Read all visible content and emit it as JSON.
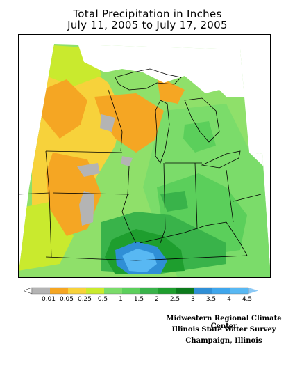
{
  "title": {
    "line1": "Total Precipitation in Inches",
    "line2": "July 11, 2005 to July 17, 2005"
  },
  "legend": {
    "bins": [
      {
        "label": "0.01",
        "color": "#b4b4b4"
      },
      {
        "label": "0.05",
        "color": "#f5a623"
      },
      {
        "label": "0.25",
        "color": "#f7d23b"
      },
      {
        "label": "0.5",
        "color": "#c9ea2e"
      },
      {
        "label": "1",
        "color": "#7bdc6a"
      },
      {
        "label": "1.5",
        "color": "#5bcf5b"
      },
      {
        "label": "2",
        "color": "#39b34a"
      },
      {
        "label": "2.5",
        "color": "#1e9e2e"
      },
      {
        "label": "3",
        "color": "#0c7a1c"
      },
      {
        "label": "3.5",
        "color": "#2f8fd6"
      },
      {
        "label": "4",
        "color": "#3fa6ec"
      },
      {
        "label": "4.5",
        "color": "#58b8f3"
      }
    ],
    "max_arrow_color": "#8cc9f5"
  },
  "credits": {
    "line1": "Midwestern Regional Climate Center",
    "line2": "Illinois State Water Survey",
    "line3": "Champaign, Illinois"
  },
  "colors": {
    "no_data": "#ffffff",
    "light_green": "#7bdc6a",
    "medium_green": "#5bcf5b",
    "green": "#39b34a",
    "dark_green": "#1e9e2e",
    "darkest_green": "#0c7a1c",
    "blue": "#2f8fd6",
    "light_blue": "#58b8f3",
    "orange": "#f5a623",
    "yellow": "#f7d23b",
    "lime": "#c9ea2e",
    "gray": "#b4b4b4"
  }
}
